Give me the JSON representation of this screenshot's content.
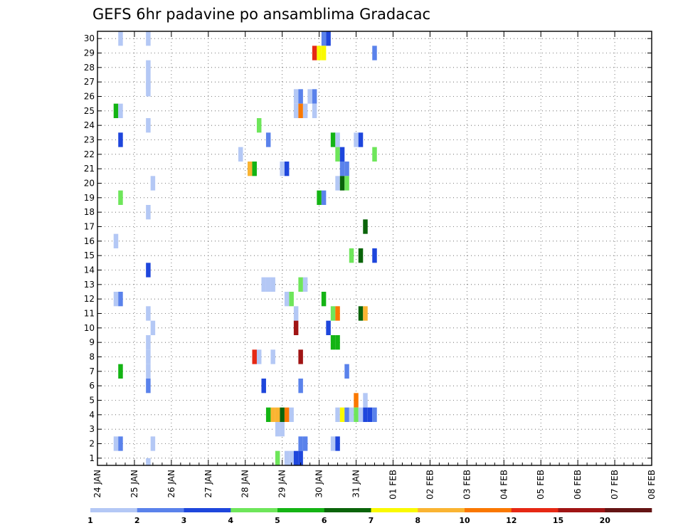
{
  "chart_data": {
    "type": "heatmap",
    "title": "GEFS 6hr padavine po ansamblima Gradacac",
    "xlabel": "",
    "ylabel": "",
    "grid": true,
    "x_ticks": [
      "24 JAN",
      "25 JAN",
      "26 JAN",
      "27 JAN",
      "28 JAN",
      "29 JAN",
      "30 JAN",
      "31 JAN",
      "01 FEB",
      "02 FEB",
      "03 FEB",
      "04 FEB",
      "05 FEB",
      "06 FEB",
      "07 FEB",
      "08 FEB"
    ],
    "y_ticks": [
      "1",
      "2",
      "3",
      "4",
      "5",
      "6",
      "7",
      "8",
      "9",
      "10",
      "11",
      "12",
      "13",
      "14",
      "15",
      "16",
      "17",
      "18",
      "19",
      "20",
      "21",
      "22",
      "23",
      "24",
      "25",
      "26",
      "27",
      "28",
      "29",
      "30"
    ],
    "xlim": [
      0,
      60
    ],
    "ylim": [
      0.5,
      30.5
    ],
    "colorbar": {
      "bounds": [
        "1",
        "2",
        "3",
        "4",
        "5",
        "6",
        "7",
        "8",
        "10",
        "12",
        "15",
        "20"
      ],
      "colors": [
        "#b4c8f5",
        "#5a82eb",
        "#1e46dc",
        "#6ee65a",
        "#14b414",
        "#0a640a",
        "#fafa00",
        "#fab432",
        "#fa7800",
        "#e62814",
        "#a01414",
        "#641414"
      ]
    },
    "cells": [
      [
        2.5,
        30,
        0
      ],
      [
        5.5,
        30,
        0
      ],
      [
        24.5,
        30,
        1
      ],
      [
        25,
        30,
        2
      ],
      [
        23.5,
        29,
        9
      ],
      [
        24,
        29,
        6
      ],
      [
        24.5,
        29,
        6
      ],
      [
        30,
        29,
        1
      ],
      [
        5.5,
        28,
        0
      ],
      [
        5.5,
        27,
        0
      ],
      [
        5.5,
        26.5,
        0
      ],
      [
        21.5,
        26,
        0
      ],
      [
        22,
        26,
        1
      ],
      [
        23,
        26,
        0
      ],
      [
        23.5,
        26,
        1
      ],
      [
        2,
        25,
        4
      ],
      [
        2.5,
        25,
        0
      ],
      [
        21.5,
        25,
        0
      ],
      [
        22,
        25,
        8
      ],
      [
        22.5,
        25,
        0
      ],
      [
        23.5,
        25,
        0
      ],
      [
        5.5,
        24,
        0
      ],
      [
        17.5,
        24,
        3
      ],
      [
        2.5,
        23,
        2
      ],
      [
        18.5,
        23,
        1
      ],
      [
        25.5,
        23,
        4
      ],
      [
        26,
        23,
        0
      ],
      [
        28,
        23,
        0
      ],
      [
        28.5,
        23,
        2
      ],
      [
        15.5,
        22,
        0
      ],
      [
        26,
        22,
        3
      ],
      [
        26.5,
        22,
        2
      ],
      [
        30,
        22,
        3
      ],
      [
        16.5,
        21,
        7
      ],
      [
        17,
        21,
        4
      ],
      [
        20,
        21,
        0
      ],
      [
        20.5,
        21,
        2
      ],
      [
        26.5,
        21,
        1
      ],
      [
        27,
        21,
        1
      ],
      [
        6,
        20,
        0
      ],
      [
        26,
        20,
        0
      ],
      [
        26.5,
        20,
        5
      ],
      [
        27,
        20,
        3
      ],
      [
        2.5,
        19,
        3
      ],
      [
        24,
        19,
        4
      ],
      [
        24.5,
        19,
        1
      ],
      [
        5.5,
        18,
        0
      ],
      [
        29,
        17,
        5
      ],
      [
        2,
        16,
        0
      ],
      [
        27.5,
        15,
        3
      ],
      [
        28.5,
        15,
        5
      ],
      [
        30,
        15,
        2
      ],
      [
        5.5,
        14,
        2
      ],
      [
        18,
        13,
        0
      ],
      [
        18.5,
        13,
        0
      ],
      [
        19,
        13,
        0
      ],
      [
        22,
        13,
        3
      ],
      [
        22.5,
        13,
        0
      ],
      [
        2,
        12,
        0
      ],
      [
        2.5,
        12,
        1
      ],
      [
        20.5,
        12,
        0
      ],
      [
        21,
        12,
        3
      ],
      [
        24.5,
        12,
        4
      ],
      [
        5.5,
        11,
        0
      ],
      [
        21.5,
        11,
        0
      ],
      [
        25.5,
        11,
        3
      ],
      [
        26,
        11,
        8
      ],
      [
        28.5,
        11,
        5
      ],
      [
        29,
        11,
        7
      ],
      [
        6,
        10,
        0
      ],
      [
        21.5,
        10,
        10
      ],
      [
        25,
        10,
        2
      ],
      [
        5.5,
        9,
        0
      ],
      [
        25.5,
        9,
        4
      ],
      [
        26,
        9,
        4
      ],
      [
        5.5,
        8,
        0
      ],
      [
        17,
        8,
        9
      ],
      [
        17.5,
        8,
        0
      ],
      [
        19,
        8,
        0
      ],
      [
        22,
        8,
        10
      ],
      [
        2.5,
        7,
        4
      ],
      [
        5.5,
        7,
        0
      ],
      [
        27,
        7,
        1
      ],
      [
        5.5,
        6,
        1
      ],
      [
        18,
        6,
        2
      ],
      [
        22,
        6,
        1
      ],
      [
        28,
        5,
        8
      ],
      [
        29,
        5,
        0
      ],
      [
        18.5,
        4,
        4
      ],
      [
        19,
        4,
        7
      ],
      [
        19.5,
        4,
        7
      ],
      [
        20,
        4,
        5
      ],
      [
        20.5,
        4,
        8
      ],
      [
        21,
        4,
        0
      ],
      [
        26,
        4,
        0
      ],
      [
        26.5,
        4,
        6
      ],
      [
        27,
        4,
        1
      ],
      [
        27.5,
        4,
        0
      ],
      [
        28,
        4,
        3
      ],
      [
        28.5,
        4,
        0
      ],
      [
        29,
        4,
        2
      ],
      [
        29.5,
        4,
        2
      ],
      [
        30,
        4,
        1
      ],
      [
        19.5,
        3,
        0
      ],
      [
        20,
        3,
        0
      ],
      [
        2,
        2,
        0
      ],
      [
        2.5,
        2,
        1
      ],
      [
        6,
        2,
        0
      ],
      [
        22,
        2,
        1
      ],
      [
        22.5,
        2,
        1
      ],
      [
        25.5,
        2,
        0
      ],
      [
        26,
        2,
        2
      ],
      [
        19.5,
        1,
        3
      ],
      [
        20.5,
        1,
        0
      ],
      [
        21,
        1,
        0
      ],
      [
        21.5,
        1,
        2
      ],
      [
        22,
        1,
        2
      ],
      [
        5.5,
        0.5,
        0
      ]
    ]
  }
}
